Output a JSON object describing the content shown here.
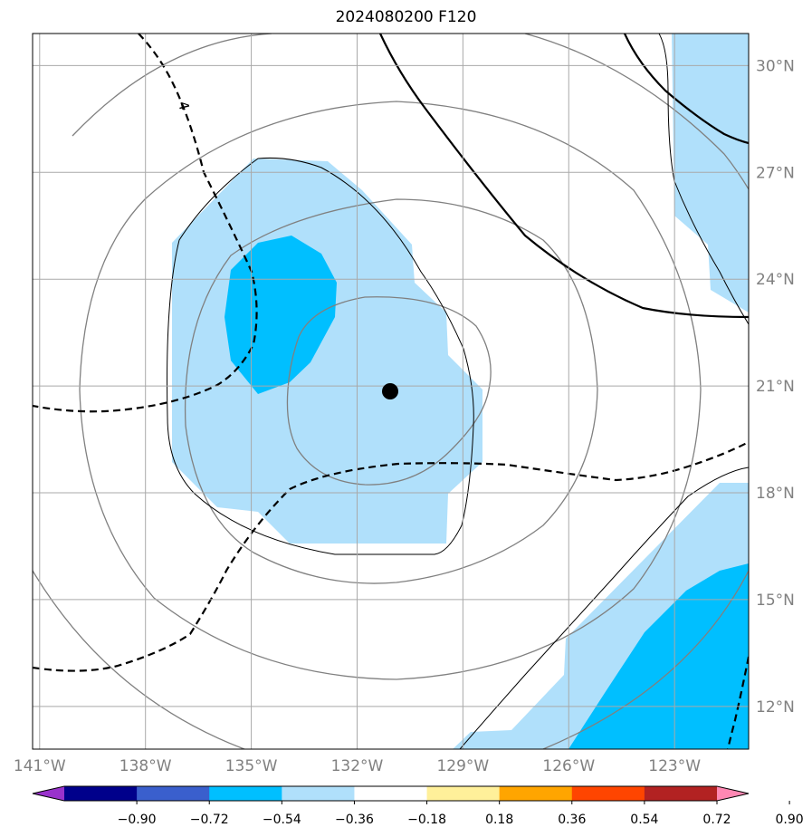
{
  "title": "2024080200 F120",
  "map": {
    "lon_range": [
      -141.2,
      -120.9
    ],
    "lat_range": [
      10.8,
      30.9
    ],
    "lon_ticks": [
      -141,
      -138,
      -135,
      -132,
      -129,
      -126,
      -123
    ],
    "lat_ticks": [
      12,
      15,
      18,
      21,
      24,
      27,
      30
    ],
    "lon_labels": [
      "141°W",
      "138°W",
      "135°W",
      "132°W",
      "129°W",
      "126°W",
      "123°W"
    ],
    "lat_labels": [
      "12°N",
      "15°N",
      "18°N",
      "21°N",
      "24°N",
      "27°N",
      "30°N"
    ],
    "storm_center": {
      "lon": -131.7,
      "lat": 21.0
    },
    "dashed_contour_label": "4",
    "colors": {
      "light_fill": "#b0e0fb",
      "mid_fill": "#00bfff",
      "grid": "#a9a9a9",
      "ring": "#808080"
    }
  },
  "colorbar": {
    "colors": [
      "#9932cc",
      "#00008b",
      "#3a5fcd",
      "#00bfff",
      "#b0e0fb",
      "#ffffff",
      "#fff09a",
      "#ffa500",
      "#ff4500",
      "#b22222",
      "#ff88b3"
    ],
    "ticks": [
      "−0.90",
      "−0.72",
      "−0.54",
      "−0.36",
      "−0.18",
      "0.18",
      "0.36",
      "0.54",
      "0.72",
      "0.90"
    ]
  }
}
